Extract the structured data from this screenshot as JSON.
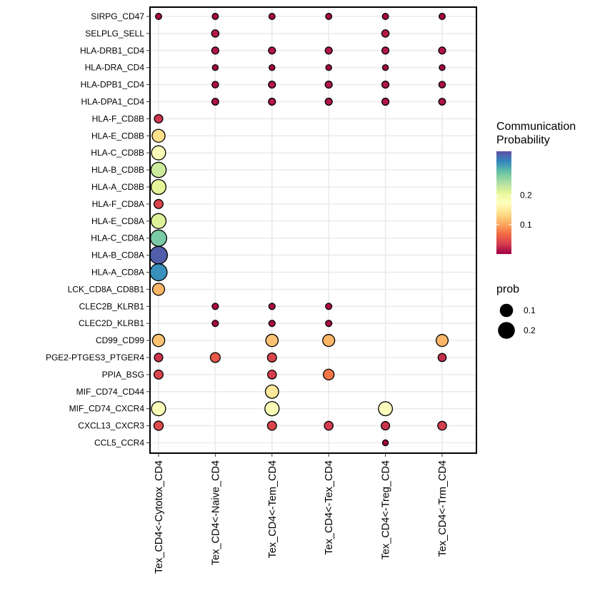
{
  "chart_data": {
    "type": "bubble-heatmap",
    "title": "",
    "xlabel": "",
    "ylabel": "",
    "grid": true,
    "legend_placement": "right",
    "rows": [
      "SIRPG_CD47",
      "SELPLG_SELL",
      "HLA-DRB1_CD4",
      "HLA-DRA_CD4",
      "HLA-DPB1_CD4",
      "HLA-DPA1_CD4",
      "HLA-F_CD8B",
      "HLA-E_CD8B",
      "HLA-C_CD8B",
      "HLA-B_CD8B",
      "HLA-A_CD8B",
      "HLA-F_CD8A",
      "HLA-E_CD8A",
      "HLA-C_CD8A",
      "HLA-B_CD8A",
      "HLA-A_CD8A",
      "LCK_CD8A_CD8B1",
      "CLEC2B_KLRB1",
      "CLEC2D_KLRB1",
      "CD99_CD99",
      "PGE2-PTGES3_PTGER4",
      "PPIA_BSG",
      "MIF_CD74_CD44",
      "MIF_CD74_CXCR4",
      "CXCL13_CXCR3",
      "CCL5_CCR4"
    ],
    "columns": [
      "Tex_CD4<-Cytotox_CD4",
      "Tex_CD4<-Naive_CD4",
      "Tex_CD4<-Tem_CD4",
      "Tex_CD4<-Tex_CD4",
      "Tex_CD4<-Treg_CD4",
      "Tex_CD4<-Trm_CD4"
    ],
    "points": [
      {
        "row": "SIRPG_CD47",
        "col": "Tex_CD4<-Cytotox_CD4",
        "prob": 0.005
      },
      {
        "row": "SIRPG_CD47",
        "col": "Tex_CD4<-Naive_CD4",
        "prob": 0.005
      },
      {
        "row": "SIRPG_CD47",
        "col": "Tex_CD4<-Tem_CD4",
        "prob": 0.005
      },
      {
        "row": "SIRPG_CD47",
        "col": "Tex_CD4<-Tex_CD4",
        "prob": 0.005
      },
      {
        "row": "SIRPG_CD47",
        "col": "Tex_CD4<-Treg_CD4",
        "prob": 0.005
      },
      {
        "row": "SIRPG_CD47",
        "col": "Tex_CD4<-Trm_CD4",
        "prob": 0.005
      },
      {
        "row": "SELPLG_SELL",
        "col": "Tex_CD4<-Naive_CD4",
        "prob": 0.015
      },
      {
        "row": "SELPLG_SELL",
        "col": "Tex_CD4<-Treg_CD4",
        "prob": 0.015
      },
      {
        "row": "HLA-DRB1_CD4",
        "col": "Tex_CD4<-Naive_CD4",
        "prob": 0.012
      },
      {
        "row": "HLA-DRB1_CD4",
        "col": "Tex_CD4<-Tem_CD4",
        "prob": 0.012
      },
      {
        "row": "HLA-DRB1_CD4",
        "col": "Tex_CD4<-Tex_CD4",
        "prob": 0.012
      },
      {
        "row": "HLA-DRB1_CD4",
        "col": "Tex_CD4<-Treg_CD4",
        "prob": 0.012
      },
      {
        "row": "HLA-DRB1_CD4",
        "col": "Tex_CD4<-Trm_CD4",
        "prob": 0.012
      },
      {
        "row": "HLA-DRA_CD4",
        "col": "Tex_CD4<-Naive_CD4",
        "prob": 0.003
      },
      {
        "row": "HLA-DRA_CD4",
        "col": "Tex_CD4<-Tem_CD4",
        "prob": 0.003
      },
      {
        "row": "HLA-DRA_CD4",
        "col": "Tex_CD4<-Tex_CD4",
        "prob": 0.003
      },
      {
        "row": "HLA-DRA_CD4",
        "col": "Tex_CD4<-Treg_CD4",
        "prob": 0.003
      },
      {
        "row": "HLA-DRA_CD4",
        "col": "Tex_CD4<-Trm_CD4",
        "prob": 0.003
      },
      {
        "row": "HLA-DPB1_CD4",
        "col": "Tex_CD4<-Naive_CD4",
        "prob": 0.008
      },
      {
        "row": "HLA-DPB1_CD4",
        "col": "Tex_CD4<-Tem_CD4",
        "prob": 0.012
      },
      {
        "row": "HLA-DPB1_CD4",
        "col": "Tex_CD4<-Tex_CD4",
        "prob": 0.012
      },
      {
        "row": "HLA-DPB1_CD4",
        "col": "Tex_CD4<-Treg_CD4",
        "prob": 0.012
      },
      {
        "row": "HLA-DPB1_CD4",
        "col": "Tex_CD4<-Trm_CD4",
        "prob": 0.008
      },
      {
        "row": "HLA-DPA1_CD4",
        "col": "Tex_CD4<-Naive_CD4",
        "prob": 0.01
      },
      {
        "row": "HLA-DPA1_CD4",
        "col": "Tex_CD4<-Tem_CD4",
        "prob": 0.012
      },
      {
        "row": "HLA-DPA1_CD4",
        "col": "Tex_CD4<-Tex_CD4",
        "prob": 0.012
      },
      {
        "row": "HLA-DPA1_CD4",
        "col": "Tex_CD4<-Treg_CD4",
        "prob": 0.012
      },
      {
        "row": "HLA-DPA1_CD4",
        "col": "Tex_CD4<-Trm_CD4",
        "prob": 0.01
      },
      {
        "row": "HLA-F_CD8B",
        "col": "Tex_CD4<-Cytotox_CD4",
        "prob": 0.03
      },
      {
        "row": "HLA-E_CD8B",
        "col": "Tex_CD4<-Cytotox_CD4",
        "prob": 0.14
      },
      {
        "row": "HLA-C_CD8B",
        "col": "Tex_CD4<-Cytotox_CD4",
        "prob": 0.18
      },
      {
        "row": "HLA-B_CD8B",
        "col": "Tex_CD4<-Cytotox_CD4",
        "prob": 0.225
      },
      {
        "row": "HLA-A_CD8B",
        "col": "Tex_CD4<-Cytotox_CD4",
        "prob": 0.21
      },
      {
        "row": "HLA-F_CD8A",
        "col": "Tex_CD4<-Cytotox_CD4",
        "prob": 0.04
      },
      {
        "row": "HLA-E_CD8A",
        "col": "Tex_CD4<-Cytotox_CD4",
        "prob": 0.215
      },
      {
        "row": "HLA-C_CD8A",
        "col": "Tex_CD4<-Cytotox_CD4",
        "prob": 0.27
      },
      {
        "row": "HLA-B_CD8A",
        "col": "Tex_CD4<-Cytotox_CD4",
        "prob": 0.34
      },
      {
        "row": "HLA-A_CD8A",
        "col": "Tex_CD4<-Cytotox_CD4",
        "prob": 0.31
      },
      {
        "row": "LCK_CD8A_CD8B1",
        "col": "Tex_CD4<-Cytotox_CD4",
        "prob": 0.11
      },
      {
        "row": "CLEC2B_KLRB1",
        "col": "Tex_CD4<-Naive_CD4",
        "prob": 0.006
      },
      {
        "row": "CLEC2B_KLRB1",
        "col": "Tex_CD4<-Tem_CD4",
        "prob": 0.006
      },
      {
        "row": "CLEC2B_KLRB1",
        "col": "Tex_CD4<-Tex_CD4",
        "prob": 0.006
      },
      {
        "row": "CLEC2D_KLRB1",
        "col": "Tex_CD4<-Naive_CD4",
        "prob": 0.006
      },
      {
        "row": "CLEC2D_KLRB1",
        "col": "Tex_CD4<-Tem_CD4",
        "prob": 0.006
      },
      {
        "row": "CLEC2D_KLRB1",
        "col": "Tex_CD4<-Tex_CD4",
        "prob": 0.006
      },
      {
        "row": "CD99_CD99",
        "col": "Tex_CD4<-Cytotox_CD4",
        "prob": 0.12
      },
      {
        "row": "CD99_CD99",
        "col": "Tex_CD4<-Tem_CD4",
        "prob": 0.12
      },
      {
        "row": "CD99_CD99",
        "col": "Tex_CD4<-Tex_CD4",
        "prob": 0.11
      },
      {
        "row": "CD99_CD99",
        "col": "Tex_CD4<-Trm_CD4",
        "prob": 0.11
      },
      {
        "row": "PGE2-PTGES3_PTGER4",
        "col": "Tex_CD4<-Cytotox_CD4",
        "prob": 0.03
      },
      {
        "row": "PGE2-PTGES3_PTGER4",
        "col": "Tex_CD4<-Naive_CD4",
        "prob": 0.055
      },
      {
        "row": "PGE2-PTGES3_PTGER4",
        "col": "Tex_CD4<-Tem_CD4",
        "prob": 0.04
      },
      {
        "row": "PGE2-PTGES3_PTGER4",
        "col": "Tex_CD4<-Trm_CD4",
        "prob": 0.025
      },
      {
        "row": "PPIA_BSG",
        "col": "Tex_CD4<-Cytotox_CD4",
        "prob": 0.04
      },
      {
        "row": "PPIA_BSG",
        "col": "Tex_CD4<-Tem_CD4",
        "prob": 0.035
      },
      {
        "row": "PPIA_BSG",
        "col": "Tex_CD4<-Tex_CD4",
        "prob": 0.075
      },
      {
        "row": "MIF_CD74_CD44",
        "col": "Tex_CD4<-Tem_CD4",
        "prob": 0.15
      },
      {
        "row": "MIF_CD74_CXCR4",
        "col": "Tex_CD4<-Cytotox_CD4",
        "prob": 0.18
      },
      {
        "row": "MIF_CD74_CXCR4",
        "col": "Tex_CD4<-Tem_CD4",
        "prob": 0.185
      },
      {
        "row": "MIF_CD74_CXCR4",
        "col": "Tex_CD4<-Treg_CD4",
        "prob": 0.175
      },
      {
        "row": "CXCL13_CXCR3",
        "col": "Tex_CD4<-Cytotox_CD4",
        "prob": 0.045
      },
      {
        "row": "CXCL13_CXCR3",
        "col": "Tex_CD4<-Tem_CD4",
        "prob": 0.04
      },
      {
        "row": "CXCL13_CXCR3",
        "col": "Tex_CD4<-Tex_CD4",
        "prob": 0.035
      },
      {
        "row": "CXCL13_CXCR3",
        "col": "Tex_CD4<-Treg_CD4",
        "prob": 0.03
      },
      {
        "row": "CXCL13_CXCR3",
        "col": "Tex_CD4<-Trm_CD4",
        "prob": 0.035
      },
      {
        "row": "CCL5_CCR4",
        "col": "Tex_CD4<-Treg_CD4",
        "prob": 0.003
      }
    ],
    "color_scale": {
      "palette": "Spectral",
      "domain": [
        0.0,
        0.35
      ],
      "stops": [
        "#9E0142",
        "#D53E4F",
        "#F46D43",
        "#FDAE61",
        "#FEE08B",
        "#FFFFBF",
        "#E6F598",
        "#ABDDA4",
        "#66C2A5",
        "#3288BD",
        "#5E4FA2"
      ]
    },
    "legend_color": {
      "title_lines": [
        "Communication",
        "Probability"
      ],
      "ticks": [
        {
          "value": 0.1,
          "label": "0.1"
        },
        {
          "value": 0.2,
          "label": "0.2"
        }
      ]
    },
    "legend_size": {
      "title": "prob",
      "items": [
        {
          "value": 0.1,
          "label": "0.1"
        },
        {
          "value": 0.2,
          "label": "0.2"
        }
      ]
    }
  }
}
